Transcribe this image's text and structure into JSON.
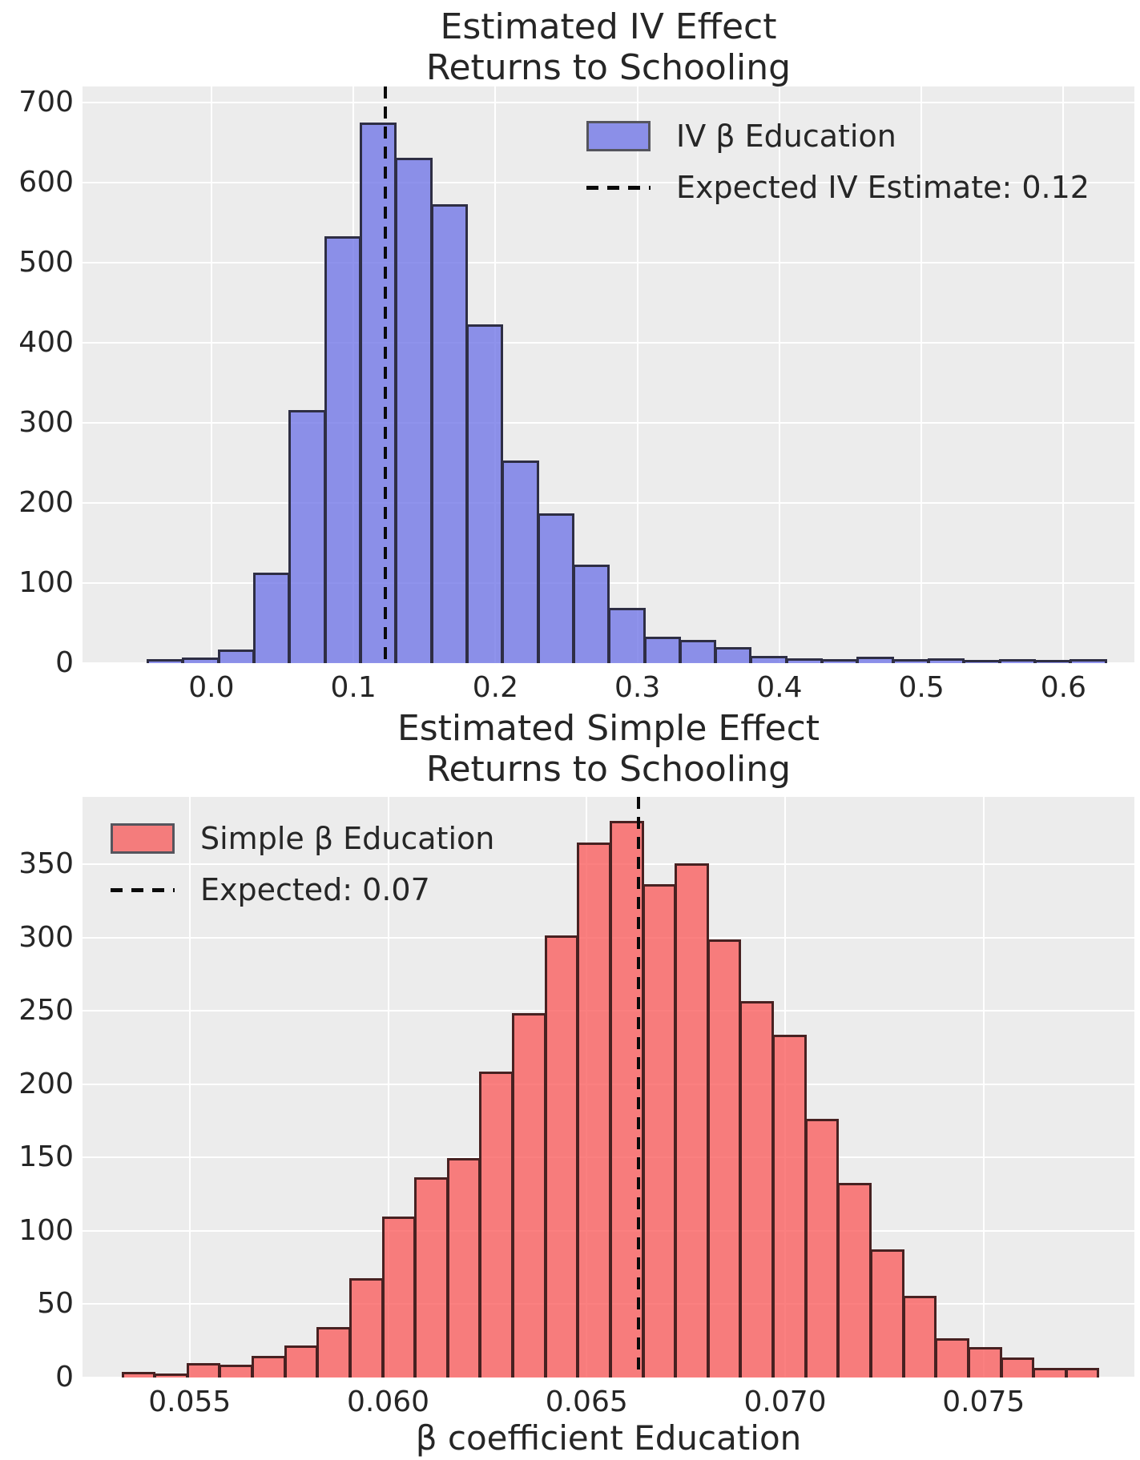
{
  "figure": {
    "background": "#ffffff",
    "text_color": "#262626",
    "plot_background": "#ececec",
    "gridline_color": "#ffffff"
  },
  "chart_data": [
    {
      "type": "bar",
      "subtype": "histogram",
      "title_lines": [
        "Estimated IV Effect",
        "Returns to Schooling"
      ],
      "series_legend": "IV β Education",
      "expected_legend": "Expected IV Estimate: 0.12",
      "expected_value": 0.1226,
      "legend_position": "top-right",
      "grid": true,
      "bin_start": -0.045,
      "bin_width": 0.025,
      "counts": [
        2,
        4,
        14,
        110,
        313,
        530,
        672,
        628,
        570,
        420,
        250,
        184,
        120,
        66,
        30,
        26,
        17,
        6,
        3,
        2,
        5,
        2,
        3,
        1,
        2,
        1,
        2
      ],
      "xlim": [
        -0.0908,
        0.65
      ],
      "ylim": [
        0,
        720
      ],
      "xticks": [
        0.0,
        0.1,
        0.2,
        0.3,
        0.4,
        0.5,
        0.6
      ],
      "xtick_labels": [
        "0.0",
        "0.1",
        "0.2",
        "0.3",
        "0.4",
        "0.5",
        "0.6"
      ],
      "yticks": [
        0,
        100,
        200,
        300,
        400,
        500,
        600,
        700
      ],
      "ytick_labels": [
        "0",
        "100",
        "200",
        "300",
        "400",
        "500",
        "600",
        "700"
      ],
      "xlabel": "",
      "colors": {
        "fill": "rgba(115,120,231,0.8)",
        "edge": "#2e2e44",
        "swatch": "#8b8fe8",
        "dashed_line": "#0a0a0a"
      }
    },
    {
      "type": "bar",
      "subtype": "histogram",
      "title_lines": [
        "Estimated Simple Effect",
        "Returns to Schooling"
      ],
      "series_legend": "Simple β Education",
      "expected_legend": "Expected: 0.07",
      "expected_value": 0.0663,
      "legend_position": "top-left",
      "grid": true,
      "bin_start": 0.0533,
      "bin_width": 0.00082,
      "counts": [
        2,
        1,
        8,
        7,
        13,
        20,
        33,
        66,
        108,
        135,
        148,
        207,
        247,
        300,
        363,
        378,
        335,
        349,
        297,
        255,
        232,
        175,
        131,
        86,
        54,
        25,
        19,
        12,
        5,
        5
      ],
      "xlim": [
        0.0523,
        0.0788
      ],
      "ylim": [
        0,
        396
      ],
      "xticks": [
        0.055,
        0.06,
        0.065,
        0.07,
        0.075
      ],
      "xtick_labels": [
        "0.055",
        "0.060",
        "0.065",
        "0.070",
        "0.075"
      ],
      "yticks": [
        0,
        50,
        100,
        150,
        200,
        250,
        300,
        350
      ],
      "ytick_labels": [
        "0",
        "50",
        "100",
        "150",
        "200",
        "250",
        "300",
        "350"
      ],
      "xlabel": "β coefficient Education",
      "colors": {
        "fill": "rgba(250,96,96,0.8)",
        "edge": "#472121",
        "swatch": "#f47c7c",
        "dashed_line": "#0a0a0a"
      }
    }
  ]
}
